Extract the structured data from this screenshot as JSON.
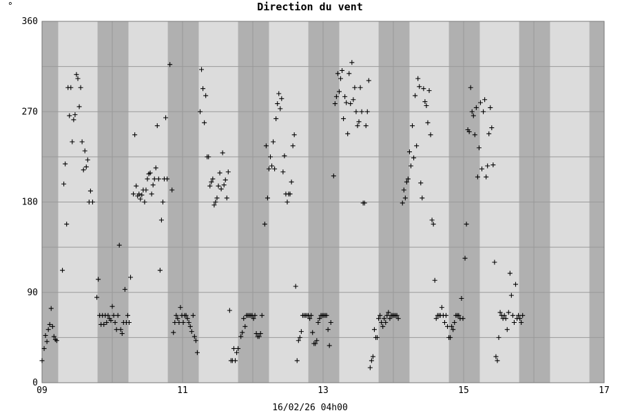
{
  "chart_data": {
    "type": "scatter",
    "title": "Direction du vent",
    "ylabel": "°",
    "xlabel": "16/02/26 04h00",
    "xlim": [
      9,
      17
    ],
    "ylim": [
      0,
      360
    ],
    "x_ticks": [
      9,
      11,
      13,
      15,
      17
    ],
    "x_tick_labels": [
      "09",
      "11",
      "13",
      "15",
      "17"
    ],
    "y_ticks": [
      0,
      90,
      180,
      270,
      360
    ],
    "y_tick_labels": [
      "0",
      "90",
      "180",
      "270",
      "360"
    ],
    "grid": true,
    "marker": "+",
    "colors": {
      "night_band": "#b0b0b0",
      "day_band": "#dcdcdc",
      "grid": "#999999",
      "marker": "#000000"
    },
    "night_bands": [
      [
        9.0,
        9.23
      ],
      [
        9.79,
        10.23
      ],
      [
        10.79,
        11.23
      ],
      [
        11.79,
        12.23
      ],
      [
        12.79,
        13.23
      ],
      [
        13.79,
        14.23
      ],
      [
        14.79,
        15.23
      ],
      [
        15.79,
        16.23
      ],
      [
        16.79,
        17.0
      ]
    ],
    "points": [
      [
        9.0,
        22
      ],
      [
        9.03,
        34
      ],
      [
        9.05,
        47
      ],
      [
        9.07,
        41
      ],
      [
        9.09,
        53
      ],
      [
        9.11,
        58
      ],
      [
        9.13,
        74
      ],
      [
        9.15,
        56
      ],
      [
        9.17,
        46
      ],
      [
        9.19,
        43
      ],
      [
        9.21,
        42
      ],
      [
        9.29,
        112
      ],
      [
        9.31,
        198
      ],
      [
        9.33,
        218
      ],
      [
        9.35,
        158
      ],
      [
        9.37,
        294
      ],
      [
        9.39,
        266
      ],
      [
        9.41,
        294
      ],
      [
        9.43,
        240
      ],
      [
        9.45,
        262
      ],
      [
        9.47,
        267
      ],
      [
        9.49,
        307
      ],
      [
        9.51,
        303
      ],
      [
        9.53,
        275
      ],
      [
        9.55,
        294
      ],
      [
        9.57,
        240
      ],
      [
        9.59,
        212
      ],
      [
        9.61,
        231
      ],
      [
        9.63,
        215
      ],
      [
        9.65,
        222
      ],
      [
        9.67,
        180
      ],
      [
        9.69,
        191
      ],
      [
        9.72,
        180
      ],
      [
        9.78,
        85
      ],
      [
        9.8,
        103
      ],
      [
        9.82,
        67
      ],
      [
        9.84,
        58
      ],
      [
        9.86,
        67
      ],
      [
        9.88,
        58
      ],
      [
        9.9,
        67
      ],
      [
        9.92,
        60
      ],
      [
        9.94,
        67
      ],
      [
        9.96,
        64
      ],
      [
        9.98,
        62
      ],
      [
        10.0,
        76
      ],
      [
        10.02,
        67
      ],
      [
        10.04,
        60
      ],
      [
        10.06,
        53
      ],
      [
        10.08,
        67
      ],
      [
        10.1,
        137
      ],
      [
        10.12,
        53
      ],
      [
        10.14,
        49
      ],
      [
        10.16,
        60
      ],
      [
        10.18,
        93
      ],
      [
        10.2,
        60
      ],
      [
        10.22,
        67
      ],
      [
        10.24,
        60
      ],
      [
        10.26,
        105
      ],
      [
        10.3,
        188
      ],
      [
        10.32,
        247
      ],
      [
        10.34,
        196
      ],
      [
        10.36,
        186
      ],
      [
        10.38,
        188
      ],
      [
        10.4,
        183
      ],
      [
        10.42,
        187
      ],
      [
        10.44,
        192
      ],
      [
        10.46,
        180
      ],
      [
        10.48,
        192
      ],
      [
        10.5,
        203
      ],
      [
        10.52,
        208
      ],
      [
        10.54,
        209
      ],
      [
        10.56,
        188
      ],
      [
        10.58,
        197
      ],
      [
        10.6,
        203
      ],
      [
        10.62,
        214
      ],
      [
        10.64,
        256
      ],
      [
        10.66,
        203
      ],
      [
        10.68,
        112
      ],
      [
        10.7,
        162
      ],
      [
        10.72,
        180
      ],
      [
        10.74,
        203
      ],
      [
        10.76,
        264
      ],
      [
        10.78,
        203
      ],
      [
        10.82,
        317
      ],
      [
        10.85,
        192
      ],
      [
        10.87,
        50
      ],
      [
        10.89,
        60
      ],
      [
        10.91,
        67
      ],
      [
        10.93,
        64
      ],
      [
        10.95,
        60
      ],
      [
        10.97,
        75
      ],
      [
        10.99,
        67
      ],
      [
        11.01,
        60
      ],
      [
        11.03,
        67
      ],
      [
        11.05,
        67
      ],
      [
        11.07,
        64
      ],
      [
        11.09,
        60
      ],
      [
        11.11,
        56
      ],
      [
        11.13,
        51
      ],
      [
        11.15,
        67
      ],
      [
        11.17,
        46
      ],
      [
        11.19,
        42
      ],
      [
        11.21,
        30
      ],
      [
        11.25,
        270
      ],
      [
        11.27,
        312
      ],
      [
        11.29,
        293
      ],
      [
        11.31,
        259
      ],
      [
        11.33,
        286
      ],
      [
        11.35,
        225
      ],
      [
        11.37,
        225
      ],
      [
        11.39,
        196
      ],
      [
        11.41,
        200
      ],
      [
        11.43,
        203
      ],
      [
        11.45,
        177
      ],
      [
        11.47,
        180
      ],
      [
        11.49,
        184
      ],
      [
        11.51,
        196
      ],
      [
        11.53,
        209
      ],
      [
        11.55,
        193
      ],
      [
        11.57,
        229
      ],
      [
        11.59,
        197
      ],
      [
        11.61,
        202
      ],
      [
        11.63,
        184
      ],
      [
        11.65,
        210
      ],
      [
        11.67,
        72
      ],
      [
        11.69,
        22
      ],
      [
        11.71,
        22
      ],
      [
        11.73,
        34
      ],
      [
        11.75,
        22
      ],
      [
        11.77,
        30
      ],
      [
        11.79,
        34
      ],
      [
        11.83,
        46
      ],
      [
        11.85,
        50
      ],
      [
        11.87,
        64
      ],
      [
        11.89,
        56
      ],
      [
        11.91,
        67
      ],
      [
        11.93,
        67
      ],
      [
        11.95,
        67
      ],
      [
        11.97,
        67
      ],
      [
        11.99,
        67
      ],
      [
        12.01,
        64
      ],
      [
        12.03,
        67
      ],
      [
        12.05,
        49
      ],
      [
        12.07,
        46
      ],
      [
        12.09,
        46
      ],
      [
        12.11,
        49
      ],
      [
        12.13,
        67
      ],
      [
        12.17,
        158
      ],
      [
        12.19,
        236
      ],
      [
        12.21,
        184
      ],
      [
        12.23,
        213
      ],
      [
        12.25,
        225
      ],
      [
        12.27,
        216
      ],
      [
        12.29,
        240
      ],
      [
        12.31,
        213
      ],
      [
        12.33,
        263
      ],
      [
        12.35,
        278
      ],
      [
        12.37,
        288
      ],
      [
        12.39,
        273
      ],
      [
        12.41,
        283
      ],
      [
        12.43,
        210
      ],
      [
        12.45,
        226
      ],
      [
        12.47,
        188
      ],
      [
        12.49,
        180
      ],
      [
        12.51,
        188
      ],
      [
        12.53,
        188
      ],
      [
        12.55,
        200
      ],
      [
        12.57,
        236
      ],
      [
        12.59,
        247
      ],
      [
        12.61,
        96
      ],
      [
        12.63,
        22
      ],
      [
        12.65,
        42
      ],
      [
        12.67,
        45
      ],
      [
        12.69,
        51
      ],
      [
        12.71,
        67
      ],
      [
        12.73,
        67
      ],
      [
        12.75,
        67
      ],
      [
        12.77,
        67
      ],
      [
        12.79,
        67
      ],
      [
        12.81,
        64
      ],
      [
        12.83,
        67
      ],
      [
        12.85,
        50
      ],
      [
        12.87,
        39
      ],
      [
        12.89,
        39
      ],
      [
        12.91,
        42
      ],
      [
        12.93,
        60
      ],
      [
        12.95,
        64
      ],
      [
        12.97,
        67
      ],
      [
        12.99,
        67
      ],
      [
        13.01,
        67
      ],
      [
        13.03,
        67
      ],
      [
        13.05,
        67
      ],
      [
        13.07,
        53
      ],
      [
        13.09,
        37
      ],
      [
        13.11,
        60
      ],
      [
        13.15,
        206
      ],
      [
        13.17,
        278
      ],
      [
        13.19,
        285
      ],
      [
        13.21,
        308
      ],
      [
        13.23,
        290
      ],
      [
        13.25,
        303
      ],
      [
        13.27,
        311
      ],
      [
        13.29,
        263
      ],
      [
        13.31,
        285
      ],
      [
        13.33,
        279
      ],
      [
        13.35,
        248
      ],
      [
        13.37,
        308
      ],
      [
        13.39,
        278
      ],
      [
        13.41,
        319
      ],
      [
        13.43,
        282
      ],
      [
        13.45,
        294
      ],
      [
        13.47,
        270
      ],
      [
        13.49,
        256
      ],
      [
        13.51,
        260
      ],
      [
        13.53,
        294
      ],
      [
        13.55,
        270
      ],
      [
        13.57,
        179
      ],
      [
        13.59,
        179
      ],
      [
        13.61,
        256
      ],
      [
        13.63,
        270
      ],
      [
        13.65,
        301
      ],
      [
        13.67,
        15
      ],
      [
        13.69,
        22
      ],
      [
        13.71,
        26
      ],
      [
        13.73,
        53
      ],
      [
        13.75,
        45
      ],
      [
        13.77,
        45
      ],
      [
        13.79,
        64
      ],
      [
        13.81,
        67
      ],
      [
        13.83,
        60
      ],
      [
        13.85,
        56
      ],
      [
        13.87,
        64
      ],
      [
        13.89,
        60
      ],
      [
        13.91,
        67
      ],
      [
        13.93,
        70
      ],
      [
        13.95,
        64
      ],
      [
        13.97,
        67
      ],
      [
        13.99,
        67
      ],
      [
        14.01,
        67
      ],
      [
        14.03,
        67
      ],
      [
        14.05,
        67
      ],
      [
        14.07,
        64
      ],
      [
        14.13,
        179
      ],
      [
        14.15,
        192
      ],
      [
        14.17,
        184
      ],
      [
        14.19,
        200
      ],
      [
        14.21,
        203
      ],
      [
        14.23,
        230
      ],
      [
        14.25,
        216
      ],
      [
        14.27,
        256
      ],
      [
        14.29,
        224
      ],
      [
        14.31,
        286
      ],
      [
        14.33,
        236
      ],
      [
        14.35,
        303
      ],
      [
        14.37,
        295
      ],
      [
        14.39,
        199
      ],
      [
        14.41,
        184
      ],
      [
        14.43,
        293
      ],
      [
        14.45,
        280
      ],
      [
        14.47,
        276
      ],
      [
        14.49,
        259
      ],
      [
        14.51,
        291
      ],
      [
        14.53,
        247
      ],
      [
        14.55,
        162
      ],
      [
        14.57,
        158
      ],
      [
        14.59,
        102
      ],
      [
        14.61,
        64
      ],
      [
        14.63,
        67
      ],
      [
        14.65,
        67
      ],
      [
        14.67,
        67
      ],
      [
        14.69,
        75
      ],
      [
        14.71,
        67
      ],
      [
        14.73,
        60
      ],
      [
        14.75,
        67
      ],
      [
        14.77,
        56
      ],
      [
        14.79,
        45
      ],
      [
        14.81,
        45
      ],
      [
        14.83,
        56
      ],
      [
        14.85,
        53
      ],
      [
        14.87,
        60
      ],
      [
        14.89,
        67
      ],
      [
        14.91,
        67
      ],
      [
        14.93,
        67
      ],
      [
        14.95,
        64
      ],
      [
        14.97,
        84
      ],
      [
        14.99,
        64
      ],
      [
        15.02,
        124
      ],
      [
        15.04,
        158
      ],
      [
        15.06,
        252
      ],
      [
        15.08,
        250
      ],
      [
        15.1,
        294
      ],
      [
        15.12,
        270
      ],
      [
        15.14,
        266
      ],
      [
        15.16,
        247
      ],
      [
        15.18,
        274
      ],
      [
        15.2,
        205
      ],
      [
        15.22,
        234
      ],
      [
        15.24,
        279
      ],
      [
        15.26,
        213
      ],
      [
        15.28,
        270
      ],
      [
        15.3,
        282
      ],
      [
        15.32,
        205
      ],
      [
        15.34,
        216
      ],
      [
        15.36,
        248
      ],
      [
        15.38,
        274
      ],
      [
        15.4,
        254
      ],
      [
        15.42,
        217
      ],
      [
        15.44,
        120
      ],
      [
        15.46,
        26
      ],
      [
        15.48,
        22
      ],
      [
        15.5,
        45
      ],
      [
        15.52,
        70
      ],
      [
        15.54,
        67
      ],
      [
        15.56,
        64
      ],
      [
        15.58,
        67
      ],
      [
        15.6,
        64
      ],
      [
        15.62,
        53
      ],
      [
        15.64,
        70
      ],
      [
        15.66,
        109
      ],
      [
        15.68,
        87
      ],
      [
        15.7,
        67
      ],
      [
        15.72,
        60
      ],
      [
        15.74,
        98
      ],
      [
        15.76,
        64
      ],
      [
        15.78,
        67
      ],
      [
        15.8,
        64
      ],
      [
        15.82,
        60
      ],
      [
        15.84,
        67
      ]
    ]
  }
}
